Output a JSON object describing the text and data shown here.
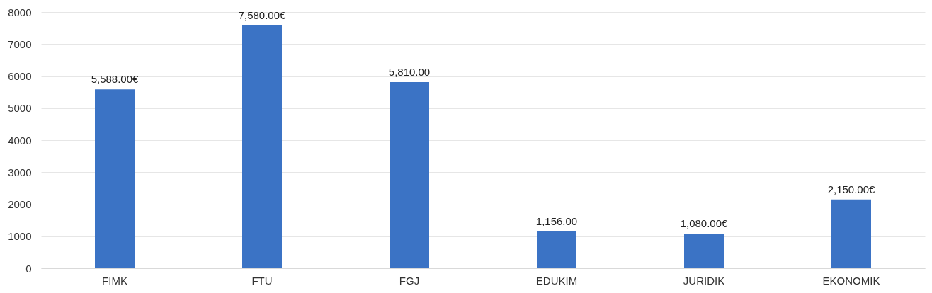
{
  "chart_data": {
    "type": "bar",
    "categories": [
      "FIMK",
      "FTU",
      "FGJ",
      "EDUKIM",
      "JURIDIK",
      "EKONOMIK"
    ],
    "values": [
      5588,
      7580,
      5810,
      1156,
      1080,
      2150
    ],
    "value_labels": [
      "5,588.00€",
      "7,580.00€",
      "5,810.00",
      "1,156.00",
      "1,080.00€",
      "2,150.00€"
    ],
    "color": "#3b73c5",
    "ylim": [
      0,
      8000
    ],
    "yticks": [
      0,
      1000,
      2000,
      3000,
      4000,
      5000,
      6000,
      7000,
      8000
    ],
    "grid": "y"
  }
}
